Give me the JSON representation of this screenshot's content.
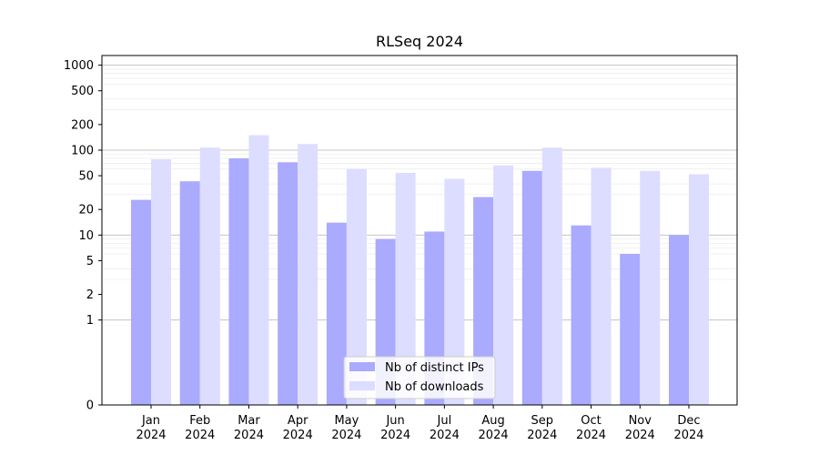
{
  "chart_data": {
    "type": "bar",
    "title": "RLSeq 2024",
    "xlabel": "",
    "ylabel": "",
    "y_scale": "symlog",
    "ylim": [
      0,
      1300
    ],
    "y_ticks": [
      0,
      1,
      2,
      5,
      10,
      20,
      50,
      100,
      200,
      500,
      1000
    ],
    "grid": "horizontal",
    "legend_position": "bottom-center",
    "categories": [
      [
        "Jan",
        "2024"
      ],
      [
        "Feb",
        "2024"
      ],
      [
        "Mar",
        "2024"
      ],
      [
        "Apr",
        "2024"
      ],
      [
        "May",
        "2024"
      ],
      [
        "Jun",
        "2024"
      ],
      [
        "Jul",
        "2024"
      ],
      [
        "Aug",
        "2024"
      ],
      [
        "Sep",
        "2024"
      ],
      [
        "Oct",
        "2024"
      ],
      [
        "Nov",
        "2024"
      ],
      [
        "Dec",
        "2024"
      ]
    ],
    "series": [
      {
        "name": "Nb of distinct IPs",
        "color": "#aaaaff",
        "values": [
          26,
          43,
          80,
          72,
          14,
          9,
          11,
          28,
          57,
          13,
          6,
          10
        ]
      },
      {
        "name": "Nb of downloads",
        "color": "#ddddff",
        "values": [
          78,
          107,
          150,
          118,
          60,
          54,
          46,
          66,
          107,
          62,
          57,
          52
        ]
      }
    ]
  }
}
